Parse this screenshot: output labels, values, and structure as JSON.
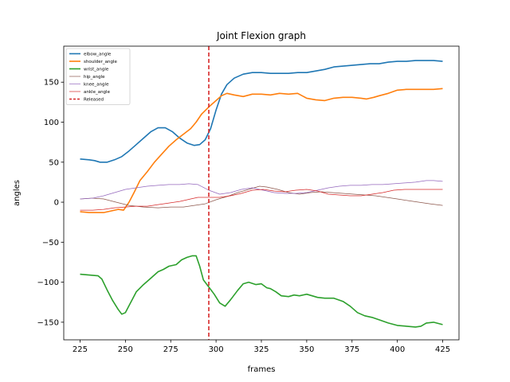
{
  "chart_data": {
    "type": "line",
    "title": "Joint Flexion graph",
    "xlabel": "frames",
    "ylabel": "angles",
    "xlim": [
      216,
      434
    ],
    "ylim": [
      -172,
      195
    ],
    "xticks": [
      225,
      250,
      275,
      300,
      325,
      350,
      375,
      400,
      425
    ],
    "yticks": [
      -150,
      -100,
      -50,
      0,
      50,
      100,
      150
    ],
    "legend_placement": "upper-left",
    "grid": false,
    "vline": {
      "name": "Released",
      "x": 296,
      "color": "#d62728",
      "style": "dashed"
    },
    "series": [
      {
        "name": "elbow_angle",
        "color": "#1f77b4",
        "width": 1.6,
        "points": [
          [
            225,
            54
          ],
          [
            230,
            53
          ],
          [
            233,
            52
          ],
          [
            236,
            50
          ],
          [
            240,
            50
          ],
          [
            244,
            53
          ],
          [
            248,
            57
          ],
          [
            252,
            64
          ],
          [
            256,
            72
          ],
          [
            260,
            80
          ],
          [
            264,
            88
          ],
          [
            268,
            93
          ],
          [
            272,
            93
          ],
          [
            276,
            88
          ],
          [
            280,
            80
          ],
          [
            284,
            74
          ],
          [
            288,
            71
          ],
          [
            291,
            72
          ],
          [
            294,
            78
          ],
          [
            297,
            92
          ],
          [
            300,
            115
          ],
          [
            303,
            135
          ],
          [
            306,
            147
          ],
          [
            310,
            155
          ],
          [
            315,
            160
          ],
          [
            320,
            162
          ],
          [
            325,
            162
          ],
          [
            330,
            161
          ],
          [
            335,
            161
          ],
          [
            340,
            161
          ],
          [
            345,
            162
          ],
          [
            350,
            162
          ],
          [
            355,
            164
          ],
          [
            360,
            166
          ],
          [
            365,
            169
          ],
          [
            370,
            170
          ],
          [
            375,
            171
          ],
          [
            380,
            172
          ],
          [
            385,
            173
          ],
          [
            390,
            173
          ],
          [
            395,
            175
          ],
          [
            400,
            176
          ],
          [
            405,
            176
          ],
          [
            410,
            177
          ],
          [
            415,
            177
          ],
          [
            420,
            177
          ],
          [
            425,
            176
          ]
        ]
      },
      {
        "name": "shoulder_angle",
        "color": "#ff7f0e",
        "width": 1.6,
        "points": [
          [
            225,
            -12
          ],
          [
            230,
            -13
          ],
          [
            235,
            -13
          ],
          [
            238,
            -13
          ],
          [
            242,
            -11
          ],
          [
            246,
            -9
          ],
          [
            249,
            -10
          ],
          [
            252,
            0
          ],
          [
            255,
            13
          ],
          [
            258,
            27
          ],
          [
            262,
            38
          ],
          [
            266,
            50
          ],
          [
            270,
            60
          ],
          [
            274,
            70
          ],
          [
            278,
            78
          ],
          [
            282,
            85
          ],
          [
            286,
            92
          ],
          [
            289,
            100
          ],
          [
            292,
            110
          ],
          [
            296,
            119
          ],
          [
            300,
            127
          ],
          [
            303,
            133
          ],
          [
            306,
            136
          ],
          [
            310,
            134
          ],
          [
            315,
            132
          ],
          [
            320,
            135
          ],
          [
            325,
            135
          ],
          [
            330,
            134
          ],
          [
            335,
            136
          ],
          [
            340,
            135
          ],
          [
            345,
            136
          ],
          [
            350,
            130
          ],
          [
            355,
            128
          ],
          [
            360,
            127
          ],
          [
            365,
            130
          ],
          [
            370,
            131
          ],
          [
            375,
            131
          ],
          [
            380,
            130
          ],
          [
            383,
            129
          ],
          [
            387,
            131
          ],
          [
            390,
            133
          ],
          [
            395,
            136
          ],
          [
            400,
            140
          ],
          [
            405,
            141
          ],
          [
            410,
            141
          ],
          [
            415,
            141
          ],
          [
            420,
            141
          ],
          [
            425,
            142
          ]
        ]
      },
      {
        "name": "wrist_angle",
        "color": "#2ca02c",
        "width": 1.6,
        "points": [
          [
            225,
            -90
          ],
          [
            230,
            -91
          ],
          [
            235,
            -92
          ],
          [
            237,
            -96
          ],
          [
            240,
            -110
          ],
          [
            243,
            -123
          ],
          [
            246,
            -134
          ],
          [
            248,
            -140
          ],
          [
            250,
            -138
          ],
          [
            253,
            -125
          ],
          [
            256,
            -112
          ],
          [
            260,
            -103
          ],
          [
            264,
            -95
          ],
          [
            268,
            -87
          ],
          [
            271,
            -84
          ],
          [
            274,
            -80
          ],
          [
            278,
            -78
          ],
          [
            281,
            -72
          ],
          [
            284,
            -69
          ],
          [
            287,
            -67
          ],
          [
            289,
            -67
          ],
          [
            291,
            -80
          ],
          [
            293,
            -97
          ],
          [
            296,
            -106
          ],
          [
            299,
            -115
          ],
          [
            302,
            -126
          ],
          [
            305,
            -130
          ],
          [
            308,
            -122
          ],
          [
            312,
            -110
          ],
          [
            315,
            -102
          ],
          [
            318,
            -100
          ],
          [
            322,
            -103
          ],
          [
            325,
            -102
          ],
          [
            328,
            -107
          ],
          [
            330,
            -108
          ],
          [
            333,
            -112
          ],
          [
            336,
            -117
          ],
          [
            340,
            -118
          ],
          [
            343,
            -116
          ],
          [
            346,
            -117
          ],
          [
            350,
            -115
          ],
          [
            353,
            -117
          ],
          [
            356,
            -119
          ],
          [
            360,
            -120
          ],
          [
            365,
            -120
          ],
          [
            370,
            -124
          ],
          [
            374,
            -130
          ],
          [
            378,
            -138
          ],
          [
            382,
            -142
          ],
          [
            386,
            -144
          ],
          [
            390,
            -147
          ],
          [
            395,
            -151
          ],
          [
            400,
            -154
          ],
          [
            405,
            -155
          ],
          [
            410,
            -156
          ],
          [
            413,
            -155
          ],
          [
            416,
            -151
          ],
          [
            420,
            -150
          ],
          [
            425,
            -153
          ]
        ]
      },
      {
        "name": "hip_angle",
        "color": "#8c564b",
        "width": 0.7,
        "points": [
          [
            225,
            4
          ],
          [
            232,
            5
          ],
          [
            238,
            4
          ],
          [
            245,
            0
          ],
          [
            252,
            -4
          ],
          [
            260,
            -6
          ],
          [
            268,
            -7
          ],
          [
            275,
            -6
          ],
          [
            282,
            -6
          ],
          [
            288,
            -4
          ],
          [
            294,
            -2
          ],
          [
            300,
            3
          ],
          [
            306,
            7
          ],
          [
            312,
            12
          ],
          [
            318,
            16
          ],
          [
            324,
            20
          ],
          [
            328,
            19
          ],
          [
            334,
            16
          ],
          [
            340,
            12
          ],
          [
            346,
            10
          ],
          [
            352,
            12
          ],
          [
            358,
            13
          ],
          [
            364,
            12
          ],
          [
            370,
            11
          ],
          [
            376,
            10
          ],
          [
            382,
            9
          ],
          [
            388,
            8
          ],
          [
            394,
            6
          ],
          [
            400,
            4
          ],
          [
            406,
            2
          ],
          [
            412,
            0
          ],
          [
            418,
            -2
          ],
          [
            425,
            -4
          ]
        ]
      },
      {
        "name": "knee_angle",
        "color": "#9467bd",
        "width": 0.7,
        "points": [
          [
            225,
            4
          ],
          [
            232,
            5
          ],
          [
            238,
            8
          ],
          [
            244,
            12
          ],
          [
            250,
            16
          ],
          [
            256,
            18
          ],
          [
            262,
            20
          ],
          [
            268,
            21
          ],
          [
            274,
            22
          ],
          [
            280,
            22
          ],
          [
            285,
            23
          ],
          [
            290,
            22
          ],
          [
            296,
            15
          ],
          [
            302,
            10
          ],
          [
            308,
            12
          ],
          [
            314,
            16
          ],
          [
            320,
            18
          ],
          [
            326,
            15
          ],
          [
            332,
            12
          ],
          [
            338,
            11
          ],
          [
            344,
            11
          ],
          [
            350,
            12
          ],
          [
            356,
            15
          ],
          [
            362,
            18
          ],
          [
            368,
            20
          ],
          [
            374,
            21
          ],
          [
            380,
            21
          ],
          [
            386,
            22
          ],
          [
            392,
            22
          ],
          [
            398,
            23
          ],
          [
            404,
            24
          ],
          [
            410,
            25
          ],
          [
            416,
            27
          ],
          [
            420,
            27
          ],
          [
            425,
            26
          ]
        ]
      },
      {
        "name": "ankle_angle",
        "color": "#d62728",
        "width": 0.7,
        "points": [
          [
            225,
            -10
          ],
          [
            232,
            -10
          ],
          [
            238,
            -9
          ],
          [
            244,
            -7
          ],
          [
            250,
            -6
          ],
          [
            256,
            -5
          ],
          [
            262,
            -5
          ],
          [
            268,
            -3
          ],
          [
            274,
            -1
          ],
          [
            280,
            1
          ],
          [
            286,
            4
          ],
          [
            290,
            6
          ],
          [
            296,
            6
          ],
          [
            302,
            6
          ],
          [
            308,
            8
          ],
          [
            314,
            11
          ],
          [
            320,
            15
          ],
          [
            326,
            16
          ],
          [
            332,
            14
          ],
          [
            338,
            13
          ],
          [
            344,
            15
          ],
          [
            350,
            16
          ],
          [
            356,
            14
          ],
          [
            362,
            10
          ],
          [
            368,
            9
          ],
          [
            374,
            8
          ],
          [
            380,
            8
          ],
          [
            386,
            10
          ],
          [
            392,
            12
          ],
          [
            398,
            15
          ],
          [
            404,
            16
          ],
          [
            410,
            16
          ],
          [
            416,
            16
          ],
          [
            420,
            16
          ],
          [
            425,
            16
          ]
        ]
      }
    ]
  }
}
